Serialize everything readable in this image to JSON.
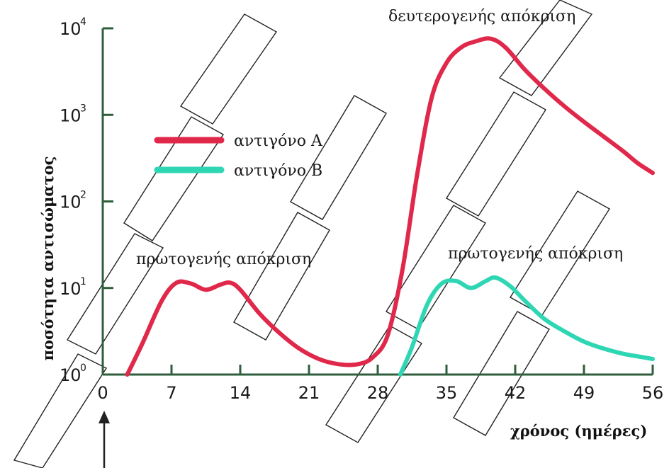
{
  "chart_data": {
    "type": "line",
    "ylabel": "ποσότητα αντισώματος",
    "xlabel": "χρόνος (ημέρες)",
    "y_scale": "log",
    "x_ticks": [
      "0",
      "7",
      "14",
      "21",
      "28",
      "35",
      "42",
      "49",
      "56"
    ],
    "y_ticks": [
      {
        "base": "10",
        "exp": "0"
      },
      {
        "base": "10",
        "exp": "1"
      },
      {
        "base": "10",
        "exp": "2"
      },
      {
        "base": "10",
        "exp": "3"
      },
      {
        "base": "10",
        "exp": "4"
      }
    ],
    "xlim": [
      0,
      56
    ],
    "ylim_exponent": [
      0,
      4
    ],
    "legend_position": "upper-left",
    "series": [
      {
        "name": "αντιγόνο A",
        "color": "#e0284a",
        "points": [
          [
            2.5,
            0.0
          ],
          [
            4,
            0.35
          ],
          [
            6,
            0.85
          ],
          [
            7.5,
            1.06
          ],
          [
            9,
            1.05
          ],
          [
            10.5,
            0.98
          ],
          [
            12,
            1.04
          ],
          [
            13,
            1.06
          ],
          [
            14,
            0.98
          ],
          [
            16,
            0.7
          ],
          [
            18,
            0.48
          ],
          [
            20,
            0.3
          ],
          [
            22,
            0.18
          ],
          [
            24,
            0.12
          ],
          [
            26,
            0.12
          ],
          [
            27.5,
            0.2
          ],
          [
            29,
            0.45
          ],
          [
            30.5,
            1.2
          ],
          [
            32,
            2.3
          ],
          [
            33.5,
            3.2
          ],
          [
            35,
            3.6
          ],
          [
            36.5,
            3.78
          ],
          [
            38,
            3.85
          ],
          [
            39.5,
            3.88
          ],
          [
            41,
            3.78
          ],
          [
            43,
            3.52
          ],
          [
            45,
            3.3
          ],
          [
            47,
            3.1
          ],
          [
            49,
            2.92
          ],
          [
            51,
            2.75
          ],
          [
            53,
            2.58
          ],
          [
            54.5,
            2.44
          ],
          [
            56,
            2.33
          ]
        ]
      },
      {
        "name": "αντιγόνο B",
        "color": "#2fd6b4",
        "points": [
          [
            30.3,
            0.0
          ],
          [
            31.5,
            0.32
          ],
          [
            33,
            0.8
          ],
          [
            34.5,
            1.05
          ],
          [
            36,
            1.08
          ],
          [
            37.5,
            1.0
          ],
          [
            39,
            1.08
          ],
          [
            40,
            1.12
          ],
          [
            41.5,
            1.02
          ],
          [
            43,
            0.85
          ],
          [
            45,
            0.64
          ],
          [
            47,
            0.5
          ],
          [
            49,
            0.38
          ],
          [
            51,
            0.3
          ],
          [
            53,
            0.24
          ],
          [
            55,
            0.2
          ],
          [
            56,
            0.18
          ]
        ]
      }
    ],
    "annotations": [
      {
        "text": "δευτερογενής απόκριση",
        "at": [
          43,
          4.1
        ]
      },
      {
        "text": "πρωτογενής απόκριση",
        "at": [
          12,
          1.3
        ]
      },
      {
        "text": "πρωτογενής απόκριση",
        "at": [
          47,
          1.3
        ]
      }
    ]
  }
}
